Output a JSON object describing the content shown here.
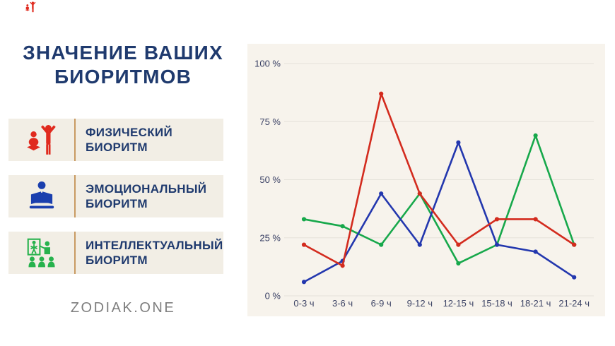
{
  "title": {
    "line1": "ЗНАЧЕНИЕ ВАШИХ",
    "line2": "БИОРИТМОВ"
  },
  "brand": {
    "footer": "ZODIAK.ONE"
  },
  "legend": {
    "items": [
      {
        "line1": "ФИЗИЧЕСКИЙ",
        "line2": "БИОРИТМ",
        "color": "#e02a1e",
        "icon": "exercise-figures-icon"
      },
      {
        "line1": "ЭМОЦИОНАЛЬНЫЙ",
        "line2": "БИОРИТМ",
        "color": "#1b3fae",
        "icon": "person-reading-icon"
      },
      {
        "line1": "ИНТЕЛЛЕКТУАЛЬНЫЙ",
        "line2": "БИОРИТМ",
        "color": "#27b24d",
        "icon": "presentation-group-icon"
      }
    ]
  },
  "colors": {
    "title_navy": "#1f3a6e",
    "panel_bg": "#f7f3ec",
    "card_bg": "#f2eee5",
    "card_divider": "#c89a62",
    "footer_gray": "#7e7e7e"
  },
  "chart_data": {
    "type": "line",
    "categories": [
      "0-3 ч",
      "3-6 ч",
      "6-9 ч",
      "9-12 ч",
      "12-15 ч",
      "15-18 ч",
      "18-21 ч",
      "21-24 ч"
    ],
    "series": [
      {
        "id": "physical",
        "name": "Физический биоритм",
        "color": "#d32b1e",
        "values": [
          22,
          13,
          87,
          44,
          22,
          33,
          33,
          22
        ]
      },
      {
        "id": "emotional",
        "name": "Эмоциональный биоритм",
        "color": "#2337ae",
        "values": [
          6,
          15,
          44,
          22,
          66,
          22,
          19,
          8
        ]
      },
      {
        "id": "intellectual",
        "name": "Интеллектуальный биоритм",
        "color": "#17a84b",
        "values": [
          33,
          30,
          22,
          44,
          14,
          22,
          69,
          22
        ]
      }
    ],
    "y_ticks": [
      0,
      25,
      50,
      75,
      100
    ],
    "y_tick_labels": [
      "0 %",
      "25 %",
      "50 %",
      "75 %",
      "100 %"
    ],
    "ylim": [
      0,
      100
    ],
    "xlabel": "",
    "ylabel": "",
    "grid": true,
    "grid_color": "#e5e2da",
    "legend_position": "external-left",
    "markers": true
  }
}
